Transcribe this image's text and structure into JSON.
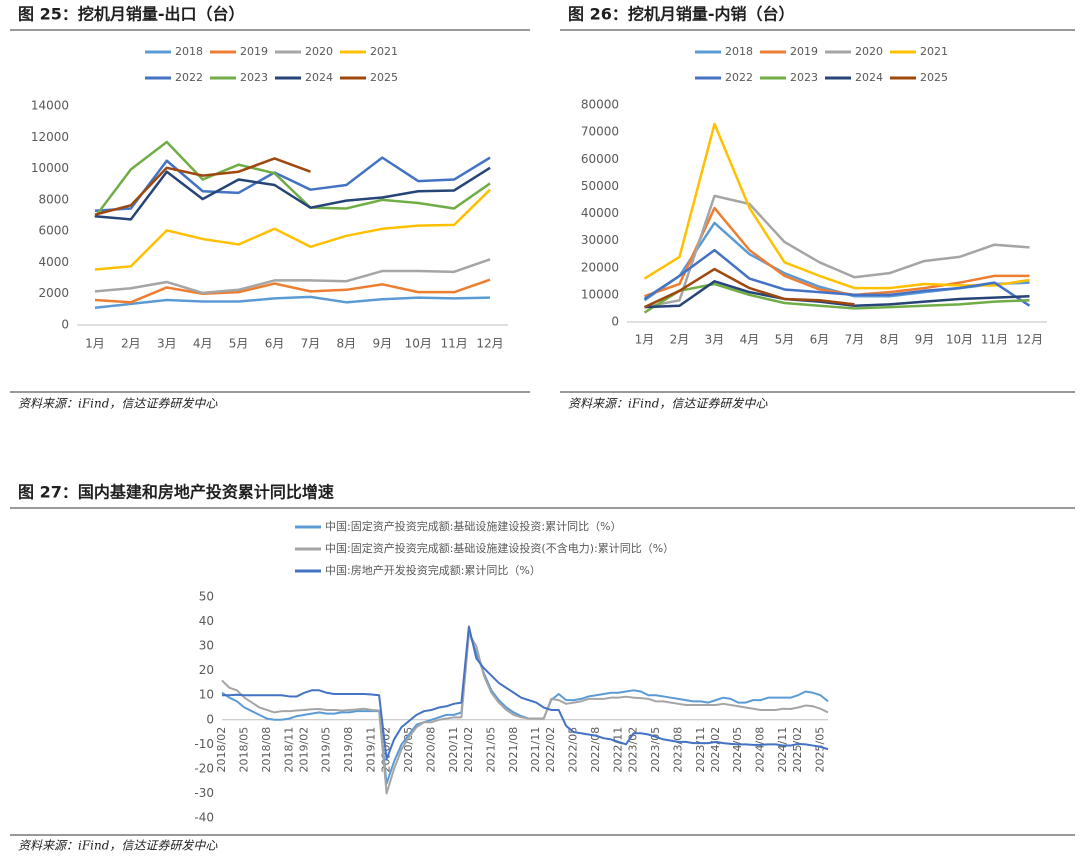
{
  "chart_data": [
    {
      "type": "line",
      "title": "图 25：挖机月销量-出口（台）",
      "source": "资料来源：iFind，信达证券研发中心",
      "categories": [
        "1月",
        "2月",
        "3月",
        "4月",
        "5月",
        "6月",
        "7月",
        "8月",
        "9月",
        "10月",
        "11月",
        "12月"
      ],
      "ylim": [
        0,
        14000
      ],
      "yticks": [
        0,
        2000,
        4000,
        6000,
        8000,
        10000,
        12000,
        14000
      ],
      "series": [
        {
          "name": "2018",
          "color": "#5b9bd5",
          "values": [
            1100,
            1350,
            1600,
            1500,
            1500,
            1700,
            1800,
            1450,
            1650,
            1750,
            1700,
            1750
          ]
        },
        {
          "name": "2019",
          "color": "#ed7d31",
          "values": [
            1600,
            1450,
            2400,
            2000,
            2100,
            2650,
            2150,
            2250,
            2600,
            2100,
            2100,
            2900
          ]
        },
        {
          "name": "2020",
          "color": "#a5a5a5",
          "values": [
            2150,
            2350,
            2750,
            2050,
            2250,
            2850,
            2850,
            2800,
            3450,
            3450,
            3400,
            4200
          ]
        },
        {
          "name": "2021",
          "color": "#ffc000",
          "values": [
            3550,
            3750,
            6050,
            5500,
            5150,
            6150,
            5000,
            5700,
            6150,
            6350,
            6400,
            8650
          ]
        },
        {
          "name": "2022",
          "color": "#4472c4",
          "values": [
            7300,
            7450,
            10500,
            8550,
            8450,
            9750,
            8650,
            8950,
            10700,
            9200,
            9300,
            10700
          ]
        },
        {
          "name": "2023",
          "color": "#70ad47",
          "values": [
            6900,
            9950,
            11700,
            9300,
            10250,
            9700,
            7500,
            7450,
            8000,
            7800,
            7450,
            9050
          ]
        },
        {
          "name": "2024",
          "color": "#264478",
          "values": [
            6950,
            6750,
            9800,
            8050,
            9300,
            8950,
            7500,
            7950,
            8150,
            8550,
            8600,
            10050
          ]
        },
        {
          "name": "2025",
          "color": "#9e480e",
          "values": [
            7050,
            7650,
            10050,
            9550,
            9800,
            10650,
            9800,
            null,
            null,
            null,
            null,
            null
          ]
        }
      ]
    },
    {
      "type": "line",
      "title": "图 26：挖机月销量-内销（台）",
      "source": "资料来源：iFind，信达证券研发中心",
      "categories": [
        "1月",
        "2月",
        "3月",
        "4月",
        "5月",
        "6月",
        "7月",
        "8月",
        "9月",
        "10月",
        "11月",
        "12月"
      ],
      "ylim": [
        0,
        80000
      ],
      "yticks": [
        0,
        10000,
        20000,
        30000,
        40000,
        50000,
        60000,
        70000,
        80000
      ],
      "series": [
        {
          "name": "2018",
          "color": "#5b9bd5",
          "values": [
            8000,
            17000,
            36500,
            25000,
            18000,
            13000,
            9500,
            9500,
            11000,
            12500,
            14000,
            14500
          ]
        },
        {
          "name": "2019",
          "color": "#ed7d31",
          "values": [
            9500,
            14000,
            42000,
            26500,
            17000,
            12000,
            10000,
            11000,
            12500,
            14500,
            17000,
            17000
          ]
        },
        {
          "name": "2020",
          "color": "#a5a5a5",
          "values": [
            5500,
            8000,
            46500,
            43500,
            29500,
            22000,
            16500,
            18000,
            22500,
            24000,
            28500,
            27500
          ]
        },
        {
          "name": "2021",
          "color": "#ffc000",
          "values": [
            16000,
            24000,
            73000,
            42000,
            22000,
            17000,
            12500,
            12500,
            14000,
            13500,
            13500,
            15500
          ]
        },
        {
          "name": "2022",
          "color": "#4472c4",
          "values": [
            8500,
            17000,
            26500,
            16000,
            12000,
            11000,
            10000,
            10000,
            11500,
            12500,
            14500,
            6000
          ]
        },
        {
          "name": "2023",
          "color": "#70ad47",
          "values": [
            3500,
            11500,
            14000,
            10000,
            7000,
            6000,
            5000,
            5500,
            6000,
            6500,
            7500,
            8000
          ]
        },
        {
          "name": "2024",
          "color": "#264478",
          "values": [
            5500,
            6000,
            15000,
            11000,
            8500,
            7500,
            6000,
            6500,
            7500,
            8500,
            9000,
            9500
          ]
        },
        {
          "name": "2025",
          "color": "#9e480e",
          "values": [
            5500,
            11500,
            19500,
            12500,
            8500,
            8000,
            6500,
            null,
            null,
            null,
            null,
            null
          ]
        }
      ]
    },
    {
      "type": "line",
      "title": "图 27：国内基建和房地产投资累计同比增速",
      "source": "资料来源：iFind，信达证券研发中心",
      "categories": [
        "2018/02",
        null,
        null,
        "2018/05",
        null,
        null,
        "2018/08",
        null,
        null,
        "2018/11",
        null,
        "2019/02",
        null,
        null,
        "2019/05",
        null,
        null,
        "2019/08",
        null,
        null,
        "2019/11",
        null,
        "2020/02",
        null,
        null,
        "2020/05",
        null,
        null,
        "2020/08",
        null,
        null,
        "2020/11",
        null,
        "2021/02",
        null,
        null,
        "2021/05",
        null,
        null,
        "2021/08",
        null,
        null,
        "2021/11",
        null,
        "2022/02",
        null,
        null,
        "2022/05",
        null,
        null,
        "2022/08",
        null,
        null,
        "2022/11",
        null,
        "2023/02",
        null,
        null,
        "2023/05",
        null,
        null,
        "2023/08",
        null,
        null,
        "2023/11",
        null,
        "2024/02",
        null,
        null,
        "2024/05",
        null,
        null,
        "2024/08",
        null,
        null,
        "2024/11",
        null,
        "2025/02",
        null,
        null,
        "2025/05",
        null
      ],
      "ylim": [
        -40,
        50
      ],
      "yticks": [
        -40,
        -30,
        -20,
        -10,
        0,
        10,
        20,
        30,
        40,
        50
      ],
      "series": [
        {
          "name": "中国:固定资产投资完成额:基础设施建设投资:累计同比（%）",
          "color": "#5b9bd5",
          "values": [
            11,
            9,
            7.5,
            5,
            3.5,
            2,
            0.5,
            0,
            0,
            0.5,
            1.5,
            2,
            2.5,
            3,
            2.5,
            2.5,
            3,
            3,
            3.5,
            3.5,
            3.5,
            3.5,
            -26,
            -17,
            -10,
            -6,
            -2,
            -1,
            0,
            1,
            2,
            2,
            3,
            36,
            27,
            19,
            12,
            8,
            5,
            3,
            1.5,
            0.5,
            0.5,
            0.5,
            8,
            10.5,
            8,
            8,
            8.5,
            9.5,
            10,
            10.5,
            11,
            11,
            11.5,
            12,
            11.5,
            10,
            10,
            9.5,
            9,
            8.5,
            8,
            7.5,
            7.5,
            7,
            8,
            9,
            8.5,
            7,
            7,
            8,
            8,
            9,
            9,
            9,
            9,
            10,
            11.5,
            11,
            10,
            7.5
          ]
        },
        {
          "name": "中国:固定资产投资完成额:基础设施建设投资(不含电力):累计同比（%）",
          "color": "#a5a5a5",
          "values": [
            16,
            13,
            12,
            9,
            7,
            5,
            4,
            3,
            3.5,
            3.5,
            3.8,
            4,
            4.3,
            4.4,
            4,
            4,
            3.8,
            4,
            4.2,
            4.5,
            4,
            3.8,
            -30,
            -20,
            -12,
            -7,
            -3,
            -1,
            -1,
            0,
            0.5,
            1,
            1,
            35,
            30,
            18,
            11,
            7,
            4,
            2,
            1,
            0.5,
            0.5,
            0.4,
            8.5,
            8,
            6.5,
            7,
            7.5,
            8.5,
            8.5,
            8.5,
            9,
            9,
            9.4,
            9,
            8.8,
            8.5,
            7.5,
            7.5,
            7,
            6.5,
            6,
            6,
            6,
            6,
            6,
            6.5,
            6,
            5.5,
            5,
            4.5,
            4,
            4,
            4,
            4.5,
            4.4,
            5,
            5.8,
            5.5,
            4.5,
            3
          ]
        },
        {
          "name": "中国:房地产开发投资完成额:累计同比（%）",
          "color": "#4472c4",
          "values": [
            10,
            10,
            10.2,
            10,
            10,
            10,
            10,
            10,
            10,
            9.5,
            9.5,
            11,
            12,
            12,
            11,
            10.5,
            10.5,
            10.5,
            10.5,
            10.5,
            10.3,
            10,
            -16,
            -8,
            -3,
            -0.5,
            2,
            3.5,
            4,
            5,
            5.5,
            6.5,
            7,
            38,
            25,
            21,
            18,
            15,
            13,
            11,
            9,
            8,
            7,
            5,
            4,
            4,
            -2.5,
            -5,
            -5.5,
            -6,
            -6.5,
            -7.5,
            -8,
            -9,
            -10,
            -5.5,
            -5.5,
            -6,
            -7,
            -8,
            -8.5,
            -9,
            -9,
            -9.5,
            -9.5,
            -9.5,
            -9,
            -9.5,
            -9.8,
            -10,
            -10,
            -10.2,
            -10.2,
            -10,
            -10,
            -10.5,
            -10.5,
            -9.8,
            -10,
            -10.5,
            -11,
            -12
          ]
        }
      ]
    }
  ]
}
